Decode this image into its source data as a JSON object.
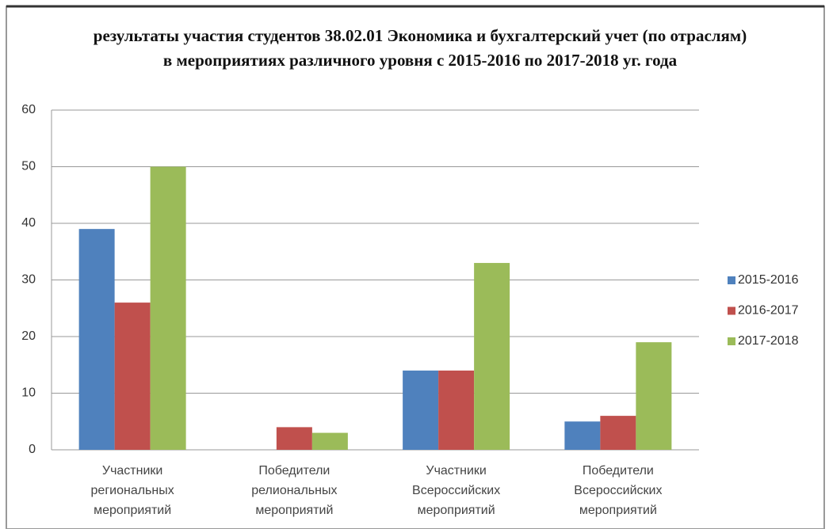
{
  "chart_data": {
    "type": "bar",
    "title": "результаты участия студентов 38.02.01 Экономика и бухгалтерский учет (по отраслям) в мероприятиях различного уровня с 2015-2016 по 2017-2018 уг. года",
    "categories": [
      "Участники региональных мероприятий",
      "Победители релиональных мероприятий",
      "Участники Всероссийских мероприятий",
      "Победители Всероссийских мероприятий"
    ],
    "series": [
      {
        "name": "2015-2016",
        "color": "#4f81bd",
        "values": [
          39,
          0,
          14,
          5
        ]
      },
      {
        "name": "2016-2017",
        "color": "#c0504d",
        "values": [
          26,
          4,
          14,
          6
        ]
      },
      {
        "name": "2017-2018",
        "color": "#9bbb59",
        "values": [
          50,
          3,
          33,
          19
        ]
      }
    ],
    "ylim": [
      0,
      60
    ],
    "yticks": [
      0,
      10,
      20,
      30,
      40,
      50,
      60
    ],
    "grid": true,
    "legend": "right"
  }
}
